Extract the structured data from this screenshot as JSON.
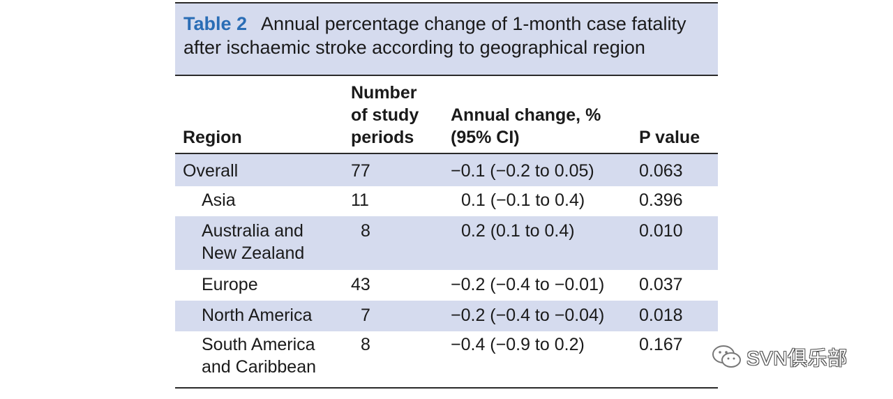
{
  "caption": {
    "label": "Table 2",
    "text": "Annual percentage change of 1-month case fatality after ischaemic stroke according to geographical region"
  },
  "headers": {
    "region": "Region",
    "number_line1": "Number",
    "number_line2": "of study",
    "number_line3": "periods",
    "change_line1": "Annual change, %",
    "change_line2": "(95% CI)",
    "p_value": "P value"
  },
  "rows": [
    {
      "region": "Overall",
      "number": "77",
      "change": "−0.1 (−0.2 to 0.05)",
      "p": "0.063"
    },
    {
      "region": "Asia",
      "number": "11",
      "change": "0.1 (−0.1 to 0.4)",
      "p": "0.396"
    },
    {
      "region_line1": "Australia and",
      "region_line2": "New Zealand",
      "number": "8",
      "change": "0.2 (0.1 to 0.4)",
      "p": "0.010"
    },
    {
      "region": "Europe",
      "number": "43",
      "change": "−0.2 (−0.4 to −0.01)",
      "p": "0.037"
    },
    {
      "region": "North America",
      "number": "7",
      "change": "−0.2 (−0.4 to −0.04)",
      "p": "0.018"
    },
    {
      "region_line1": "South America",
      "region_line2": "and Caribbean",
      "number": "8",
      "change": "−0.4 (−0.9 to 0.2)",
      "p": "0.167"
    }
  ],
  "watermark": {
    "text": "SVN俱乐部",
    "icon": "wechat-icon"
  }
}
